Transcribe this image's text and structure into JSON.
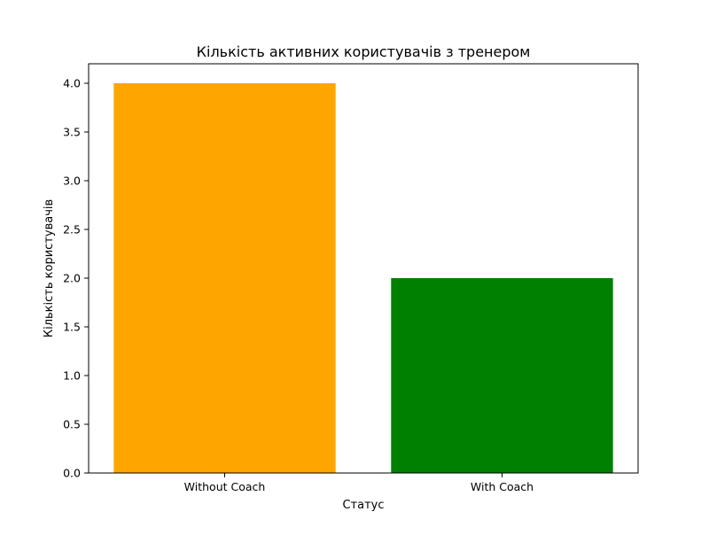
{
  "chart_data": {
    "type": "bar",
    "title": "Кількість активних користувачів з тренером",
    "xlabel": "Статус",
    "ylabel": "Кількість користувачів",
    "categories": [
      "Without Coach",
      "With Coach"
    ],
    "values": [
      4,
      2
    ],
    "colors": [
      "#ffa500",
      "#008000"
    ],
    "ylim": [
      0,
      4.2
    ],
    "yticks": [
      "0.0",
      "0.5",
      "1.0",
      "1.5",
      "2.0",
      "2.5",
      "3.0",
      "3.5",
      "4.0"
    ],
    "grid": false,
    "legend": "none"
  }
}
